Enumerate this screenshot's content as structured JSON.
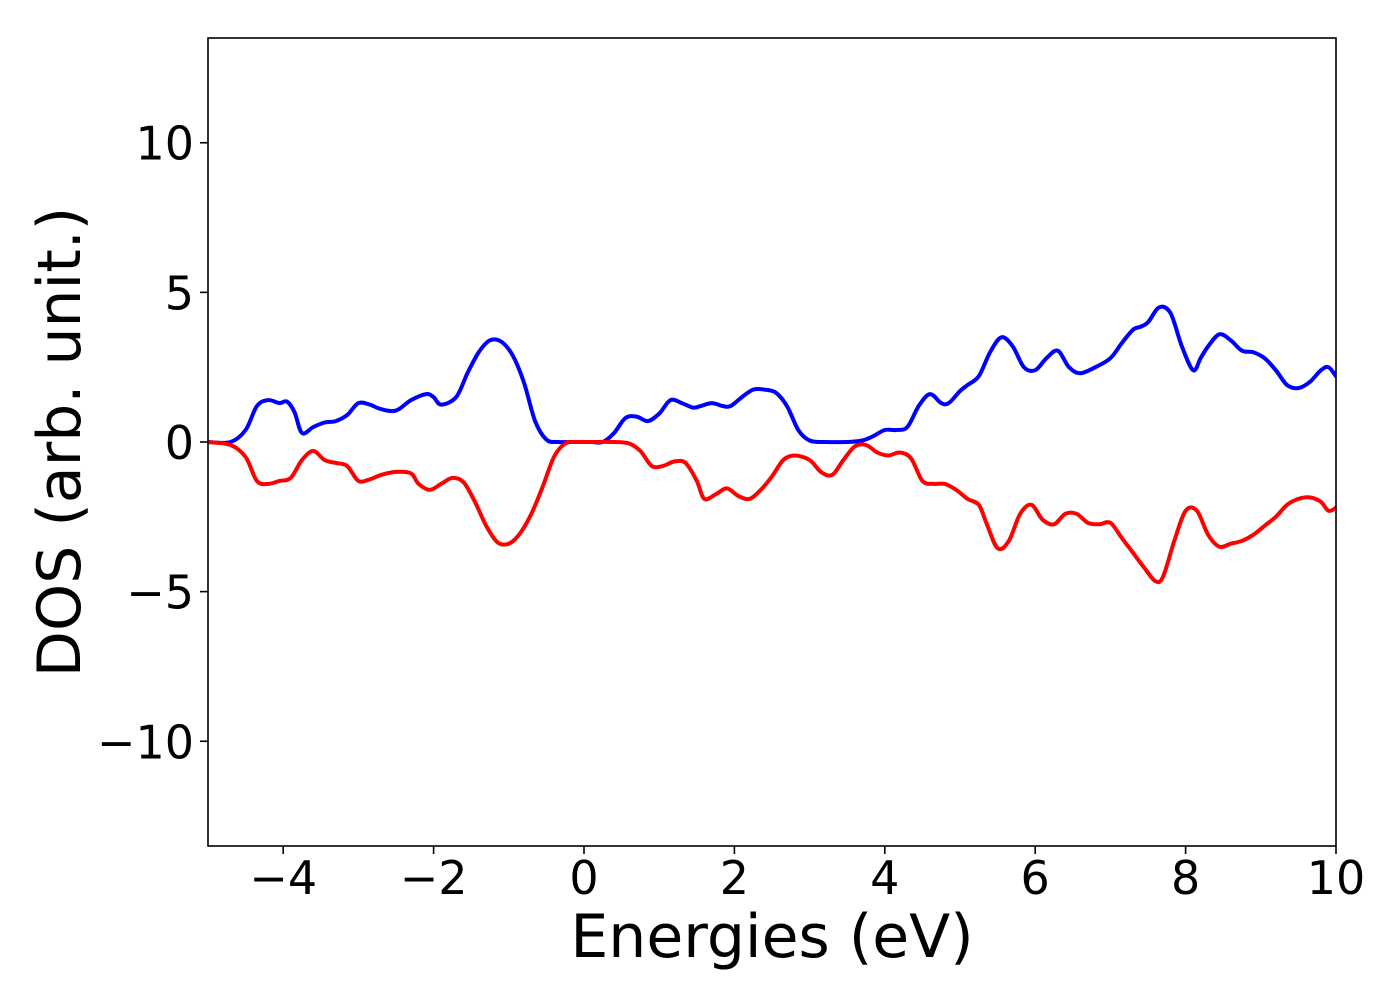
{
  "chart_data": {
    "type": "line",
    "title": "",
    "xlabel": "Energies (eV)",
    "ylabel": "DOS (arb. unit.)",
    "xlim": [
      -5,
      10
    ],
    "ylim": [
      -13.5,
      13.5
    ],
    "xticks": [
      -4,
      -2,
      0,
      2,
      4,
      6,
      8,
      10
    ],
    "xtick_labels": [
      "−4",
      "−2",
      "0",
      "2",
      "4",
      "6",
      "8",
      "10"
    ],
    "yticks": [
      -10,
      -5,
      0,
      5,
      10
    ],
    "ytick_labels": [
      "−10",
      "−5",
      "0",
      "5",
      "10"
    ],
    "grid": false,
    "legend": "none",
    "series": [
      {
        "color": "#0000ff",
        "x": [
          -5.0,
          -4.7,
          -4.5,
          -4.35,
          -4.2,
          -4.05,
          -3.95,
          -3.85,
          -3.75,
          -3.6,
          -3.45,
          -3.3,
          -3.15,
          -3.0,
          -2.85,
          -2.7,
          -2.5,
          -2.3,
          -2.1,
          -2.0,
          -1.9,
          -1.7,
          -1.55,
          -1.4,
          -1.25,
          -1.1,
          -0.95,
          -0.8,
          -0.65,
          -0.5,
          -0.35,
          -0.2,
          -0.05,
          0.0,
          0.1,
          0.25,
          0.4,
          0.55,
          0.7,
          0.85,
          1.0,
          1.15,
          1.3,
          1.45,
          1.55,
          1.7,
          1.85,
          1.95,
          2.1,
          2.25,
          2.4,
          2.55,
          2.7,
          2.85,
          3.0,
          3.2,
          3.5,
          3.7,
          3.85,
          4.0,
          4.15,
          4.3,
          4.45,
          4.6,
          4.75,
          4.85,
          5.0,
          5.1,
          5.25,
          5.4,
          5.55,
          5.7,
          5.85,
          6.0,
          6.15,
          6.3,
          6.45,
          6.6,
          6.8,
          7.0,
          7.15,
          7.3,
          7.4,
          7.5,
          7.65,
          7.8,
          7.95,
          8.1,
          8.2,
          8.3,
          8.45,
          8.6,
          8.75,
          8.9,
          9.05,
          9.2,
          9.35,
          9.5,
          9.65,
          9.8,
          9.9,
          10.0
        ],
        "values": [
          0.0,
          0.0,
          0.4,
          1.2,
          1.4,
          1.3,
          1.35,
          1.0,
          0.3,
          0.5,
          0.65,
          0.7,
          0.9,
          1.3,
          1.25,
          1.1,
          1.05,
          1.4,
          1.6,
          1.5,
          1.25,
          1.5,
          2.3,
          3.0,
          3.4,
          3.35,
          2.9,
          2.0,
          0.7,
          0.08,
          0.0,
          0.0,
          0.0,
          0.0,
          0.0,
          0.0,
          0.3,
          0.8,
          0.85,
          0.7,
          0.95,
          1.4,
          1.3,
          1.15,
          1.2,
          1.3,
          1.2,
          1.2,
          1.5,
          1.75,
          1.75,
          1.65,
          1.2,
          0.4,
          0.05,
          0.0,
          0.0,
          0.05,
          0.2,
          0.4,
          0.4,
          0.5,
          1.2,
          1.6,
          1.3,
          1.3,
          1.7,
          1.9,
          2.2,
          3.0,
          3.5,
          3.2,
          2.5,
          2.4,
          2.8,
          3.05,
          2.5,
          2.3,
          2.5,
          2.8,
          3.3,
          3.75,
          3.85,
          4.0,
          4.5,
          4.3,
          3.2,
          2.4,
          2.8,
          3.2,
          3.6,
          3.4,
          3.05,
          3.0,
          2.8,
          2.4,
          1.9,
          1.8,
          2.0,
          2.4,
          2.5,
          2.2
        ]
      },
      {
        "color": "#ff0000",
        "x": [
          -5.0,
          -4.7,
          -4.5,
          -4.35,
          -4.2,
          -4.05,
          -3.9,
          -3.75,
          -3.6,
          -3.45,
          -3.3,
          -3.15,
          -3.0,
          -2.85,
          -2.7,
          -2.5,
          -2.3,
          -2.2,
          -2.05,
          -1.9,
          -1.75,
          -1.6,
          -1.45,
          -1.3,
          -1.15,
          -1.0,
          -0.85,
          -0.7,
          -0.55,
          -0.4,
          -0.25,
          -0.1,
          0.1,
          0.4,
          0.6,
          0.75,
          0.9,
          1.05,
          1.2,
          1.35,
          1.5,
          1.6,
          1.75,
          1.9,
          2.05,
          2.2,
          2.35,
          2.5,
          2.65,
          2.8,
          3.0,
          3.15,
          3.3,
          3.45,
          3.6,
          3.75,
          3.9,
          4.05,
          4.2,
          4.35,
          4.5,
          4.65,
          4.8,
          4.95,
          5.1,
          5.25,
          5.35,
          5.5,
          5.65,
          5.8,
          5.95,
          6.1,
          6.25,
          6.4,
          6.55,
          6.7,
          6.85,
          7.0,
          7.15,
          7.3,
          7.45,
          7.6,
          7.7,
          7.85,
          8.0,
          8.15,
          8.3,
          8.45,
          8.6,
          8.75,
          8.9,
          9.05,
          9.2,
          9.35,
          9.5,
          9.65,
          9.8,
          9.9,
          10.0
        ],
        "values": [
          0.0,
          -0.1,
          -0.5,
          -1.3,
          -1.4,
          -1.3,
          -1.2,
          -0.6,
          -0.3,
          -0.6,
          -0.7,
          -0.8,
          -1.3,
          -1.25,
          -1.1,
          -1.0,
          -1.05,
          -1.4,
          -1.6,
          -1.4,
          -1.2,
          -1.35,
          -2.0,
          -2.8,
          -3.35,
          -3.4,
          -3.05,
          -2.4,
          -1.5,
          -0.5,
          -0.05,
          0.0,
          0.0,
          0.0,
          -0.05,
          -0.3,
          -0.8,
          -0.8,
          -0.65,
          -0.7,
          -1.3,
          -1.9,
          -1.75,
          -1.55,
          -1.8,
          -1.9,
          -1.6,
          -1.15,
          -0.6,
          -0.45,
          -0.6,
          -1.0,
          -1.1,
          -0.6,
          -0.15,
          -0.1,
          -0.35,
          -0.45,
          -0.35,
          -0.55,
          -1.3,
          -1.4,
          -1.4,
          -1.6,
          -1.9,
          -2.1,
          -2.7,
          -3.55,
          -3.3,
          -2.4,
          -2.1,
          -2.6,
          -2.75,
          -2.4,
          -2.4,
          -2.7,
          -2.75,
          -2.7,
          -3.2,
          -3.7,
          -4.2,
          -4.65,
          -4.5,
          -3.3,
          -2.3,
          -2.3,
          -3.1,
          -3.5,
          -3.4,
          -3.3,
          -3.1,
          -2.8,
          -2.5,
          -2.1,
          -1.9,
          -1.85,
          -2.0,
          -2.3,
          -2.2
        ]
      }
    ]
  }
}
